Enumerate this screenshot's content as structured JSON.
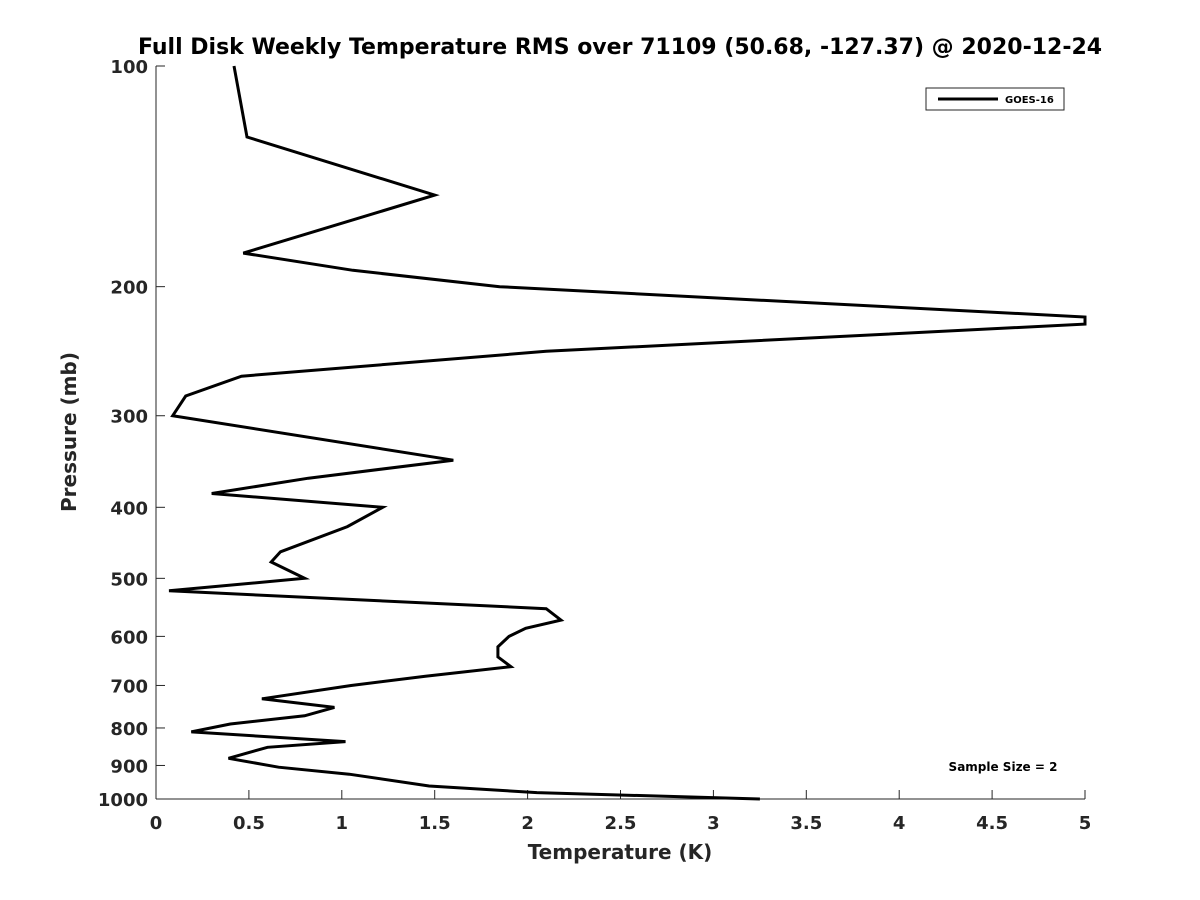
{
  "chart_data": {
    "type": "line",
    "title": "Full Disk Weekly Temperature RMS over 71109 (50.68, -127.37) @ 2020-12-24",
    "xlabel": "Temperature (K)",
    "ylabel": "Pressure (mb)",
    "xlim": [
      0,
      5
    ],
    "ylim": [
      100,
      1000
    ],
    "y_scale": "log",
    "y_reversed": true,
    "x_ticks": [
      "0",
      "0.5",
      "1",
      "1.5",
      "2",
      "2.5",
      "3",
      "3.5",
      "4",
      "4.5",
      "5"
    ],
    "y_ticks": [
      "100",
      "200",
      "300",
      "400",
      "500",
      "600",
      "700",
      "800",
      "900",
      "1000"
    ],
    "grid": false,
    "legend_position": "top-right",
    "annotation": "Sample Size = 2",
    "series": [
      {
        "name": "GOES-16",
        "color": "#000000",
        "points": [
          [
            0.42,
            100
          ],
          [
            0.49,
            125
          ],
          [
            1.5,
            150
          ],
          [
            0.47,
            180
          ],
          [
            1.06,
            190
          ],
          [
            1.85,
            200
          ],
          [
            5.0,
            220
          ],
          [
            5.0,
            225
          ],
          [
            2.1,
            245
          ],
          [
            0.46,
            265
          ],
          [
            0.16,
            282
          ],
          [
            0.09,
            300
          ],
          [
            1.6,
            345
          ],
          [
            0.82,
            365
          ],
          [
            0.3,
            383
          ],
          [
            1.22,
            400
          ],
          [
            1.03,
            425
          ],
          [
            0.67,
            460
          ],
          [
            0.62,
            475
          ],
          [
            0.8,
            500
          ],
          [
            0.07,
            520
          ],
          [
            2.1,
            550
          ],
          [
            2.18,
            570
          ],
          [
            1.99,
            585
          ],
          [
            1.9,
            600
          ],
          [
            1.84,
            620
          ],
          [
            1.84,
            640
          ],
          [
            1.91,
            660
          ],
          [
            1.45,
            680
          ],
          [
            1.05,
            700
          ],
          [
            0.57,
            730
          ],
          [
            0.96,
            750
          ],
          [
            0.8,
            770
          ],
          [
            0.4,
            790
          ],
          [
            0.19,
            810
          ],
          [
            1.02,
            835
          ],
          [
            0.6,
            850
          ],
          [
            0.39,
            880
          ],
          [
            0.66,
            905
          ],
          [
            1.04,
            925
          ],
          [
            1.47,
            960
          ],
          [
            2.05,
            980
          ],
          [
            3.25,
            1000
          ]
        ]
      }
    ]
  }
}
